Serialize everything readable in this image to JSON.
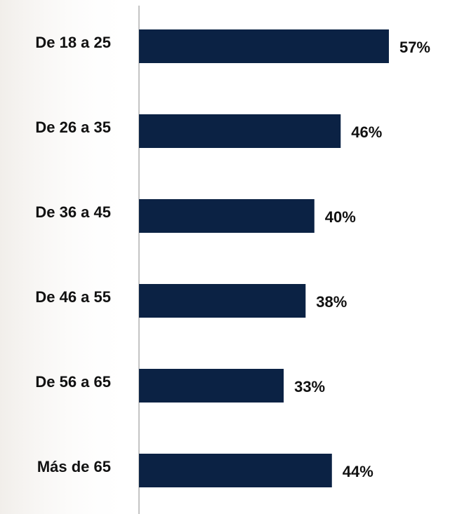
{
  "chart_data": {
    "type": "bar",
    "orientation": "horizontal",
    "categories": [
      "De 18 a 25",
      "De 26 a 35",
      "De 36 a 45",
      "De 46 a 55",
      "De 56 a 65",
      "Más de 65"
    ],
    "values": [
      57,
      46,
      40,
      38,
      33,
      44
    ],
    "value_labels": [
      "57%",
      "46%",
      "40%",
      "38%",
      "33%",
      "44%"
    ],
    "color": "#0b2244"
  }
}
